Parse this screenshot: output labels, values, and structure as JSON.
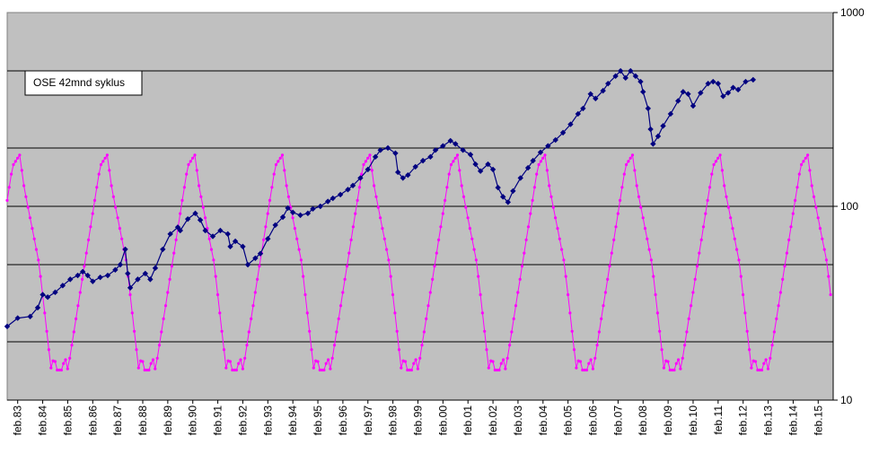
{
  "chart_data": {
    "type": "line",
    "title": "",
    "annotation": "OSE 42mnd syklus",
    "yscale": "log",
    "ylim": [
      10,
      1000
    ],
    "y_ticks": [
      "10",
      "100",
      "1000"
    ],
    "x_range": [
      1983.08,
      2016.1
    ],
    "x_tick_labels": [
      "feb.83",
      "feb.84",
      "feb.85",
      "feb.86",
      "feb.87",
      "feb.88",
      "feb.89",
      "feb.90",
      "feb.91",
      "feb.92",
      "feb.93",
      "feb.94",
      "feb.95",
      "feb.96",
      "feb.97",
      "feb.98",
      "feb.99",
      "feb.00",
      "feb.01",
      "feb.02",
      "feb.03",
      "feb.04",
      "feb.05",
      "feb.06",
      "feb.07",
      "feb.08",
      "feb.09",
      "feb.10",
      "feb.11",
      "feb.12",
      "feb.13",
      "feb.14",
      "feb.15"
    ],
    "grid": true,
    "colors": {
      "plot_bg": "#c0c0c0",
      "ose": "#000080",
      "cycle": "#ff00ff",
      "grid": "#000000"
    },
    "series": [
      {
        "key": "ose",
        "marker": "diamond",
        "points": [
          [
            1983.08,
            24
          ],
          [
            1983.5,
            26.5
          ],
          [
            1984.0,
            27
          ],
          [
            1984.3,
            30
          ],
          [
            1984.5,
            35
          ],
          [
            1984.7,
            34
          ],
          [
            1985.0,
            36
          ],
          [
            1985.3,
            39
          ],
          [
            1985.6,
            42
          ],
          [
            1985.9,
            44
          ],
          [
            1986.1,
            46
          ],
          [
            1986.3,
            44
          ],
          [
            1986.5,
            41
          ],
          [
            1986.8,
            43
          ],
          [
            1987.1,
            44
          ],
          [
            1987.4,
            47
          ],
          [
            1987.6,
            50
          ],
          [
            1987.8,
            60
          ],
          [
            1987.9,
            45
          ],
          [
            1988.0,
            38
          ],
          [
            1988.3,
            42
          ],
          [
            1988.6,
            45
          ],
          [
            1988.8,
            42
          ],
          [
            1989.0,
            48
          ],
          [
            1989.3,
            60
          ],
          [
            1989.6,
            72
          ],
          [
            1989.9,
            78
          ],
          [
            1990.0,
            75
          ],
          [
            1990.3,
            86
          ],
          [
            1990.6,
            92
          ],
          [
            1990.8,
            85
          ],
          [
            1991.0,
            75
          ],
          [
            1991.3,
            70
          ],
          [
            1991.6,
            75
          ],
          [
            1991.9,
            72
          ],
          [
            1992.0,
            62
          ],
          [
            1992.2,
            66
          ],
          [
            1992.5,
            62
          ],
          [
            1992.7,
            50
          ],
          [
            1993.0,
            54
          ],
          [
            1993.2,
            57
          ],
          [
            1993.5,
            68
          ],
          [
            1993.8,
            80
          ],
          [
            1994.1,
            88
          ],
          [
            1994.3,
            98
          ],
          [
            1994.5,
            93
          ],
          [
            1994.8,
            90
          ],
          [
            1995.1,
            92
          ],
          [
            1995.3,
            97
          ],
          [
            1995.6,
            100
          ],
          [
            1995.9,
            106
          ],
          [
            1996.1,
            110
          ],
          [
            1996.4,
            115
          ],
          [
            1996.7,
            122
          ],
          [
            1996.9,
            128
          ],
          [
            1997.2,
            140
          ],
          [
            1997.5,
            155
          ],
          [
            1997.8,
            180
          ],
          [
            1998.0,
            195
          ],
          [
            1998.3,
            200
          ],
          [
            1998.6,
            188
          ],
          [
            1998.7,
            150
          ],
          [
            1998.9,
            140
          ],
          [
            1999.1,
            145
          ],
          [
            1999.4,
            160
          ],
          [
            1999.7,
            172
          ],
          [
            2000.0,
            180
          ],
          [
            2000.2,
            195
          ],
          [
            2000.5,
            205
          ],
          [
            2000.8,
            218
          ],
          [
            2001.0,
            210
          ],
          [
            2001.3,
            195
          ],
          [
            2001.6,
            185
          ],
          [
            2001.8,
            165
          ],
          [
            2002.0,
            152
          ],
          [
            2002.3,
            165
          ],
          [
            2002.5,
            155
          ],
          [
            2002.7,
            125
          ],
          [
            2002.9,
            112
          ],
          [
            2003.1,
            105
          ],
          [
            2003.3,
            120
          ],
          [
            2003.6,
            140
          ],
          [
            2003.9,
            158
          ],
          [
            2004.1,
            172
          ],
          [
            2004.4,
            190
          ],
          [
            2004.7,
            205
          ],
          [
            2005.0,
            220
          ],
          [
            2005.3,
            240
          ],
          [
            2005.6,
            265
          ],
          [
            2005.9,
            300
          ],
          [
            2006.1,
            320
          ],
          [
            2006.4,
            380
          ],
          [
            2006.6,
            360
          ],
          [
            2006.9,
            395
          ],
          [
            2007.1,
            430
          ],
          [
            2007.4,
            470
          ],
          [
            2007.6,
            500
          ],
          [
            2007.8,
            460
          ],
          [
            2008.0,
            500
          ],
          [
            2008.2,
            470
          ],
          [
            2008.4,
            440
          ],
          [
            2008.5,
            390
          ],
          [
            2008.7,
            320
          ],
          [
            2008.8,
            250
          ],
          [
            2008.9,
            210
          ],
          [
            2009.1,
            230
          ],
          [
            2009.3,
            260
          ],
          [
            2009.6,
            300
          ],
          [
            2009.9,
            350
          ],
          [
            2010.1,
            390
          ],
          [
            2010.3,
            380
          ],
          [
            2010.5,
            330
          ],
          [
            2010.8,
            385
          ],
          [
            2011.1,
            430
          ],
          [
            2011.3,
            440
          ],
          [
            2011.5,
            430
          ],
          [
            2011.7,
            370
          ],
          [
            2011.9,
            385
          ],
          [
            2012.1,
            410
          ],
          [
            2012.3,
            400
          ],
          [
            2012.6,
            440
          ],
          [
            2012.9,
            450
          ]
        ]
      },
      {
        "key": "cycle",
        "marker": "dot",
        "period": 3.5,
        "phase_peak": 1983.58,
        "log_min": 1.155,
        "log_max": 2.265
      }
    ]
  }
}
